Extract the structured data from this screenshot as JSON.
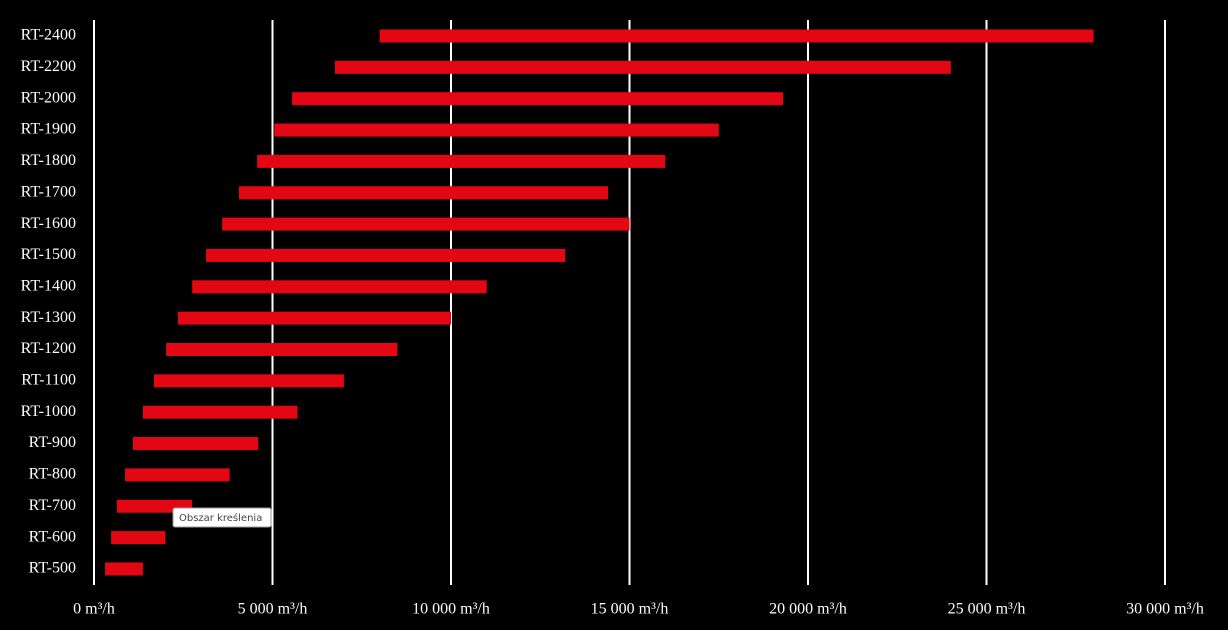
{
  "chart_data": {
    "type": "floating-bar",
    "categories": [
      "RT-2400",
      "RT-2200",
      "RT-2000",
      "RT-1900",
      "RT-1800",
      "RT-1700",
      "RT-1600",
      "RT-1500",
      "RT-1400",
      "RT-1300",
      "RT-1200",
      "RT-1100",
      "RT-1000",
      "RT-900",
      "RT-800",
      "RT-700",
      "RT-600",
      "RT-500"
    ],
    "series": [
      {
        "name": "start",
        "values": [
          8000,
          6750,
          5550,
          5050,
          4570,
          4060,
          3590,
          3140,
          2750,
          2350,
          2020,
          1680,
          1370,
          1090,
          870,
          640,
          480,
          310
        ]
      },
      {
        "name": "end",
        "values": [
          28000,
          24000,
          19300,
          17500,
          16000,
          14400,
          15000,
          13200,
          11000,
          10000,
          8500,
          7000,
          5700,
          4600,
          3800,
          2750,
          2000,
          1370
        ]
      }
    ],
    "color": "#e30613",
    "xlim": [
      0,
      30000
    ],
    "xticks": [
      {
        "value": 0,
        "label": "0 m³/h"
      },
      {
        "value": 5000,
        "label": "5 000 m³/h"
      },
      {
        "value": 10000,
        "label": "10 000 m³/h"
      },
      {
        "value": 15000,
        "label": "15 000 m³/h"
      },
      {
        "value": 20000,
        "label": "20 000 m³/h"
      },
      {
        "value": 25000,
        "label": "25 000 m³/h"
      },
      {
        "value": 30000,
        "label": "30 000 m³/h"
      }
    ],
    "grid": true,
    "tooltip": "Obszar kreślenia"
  }
}
